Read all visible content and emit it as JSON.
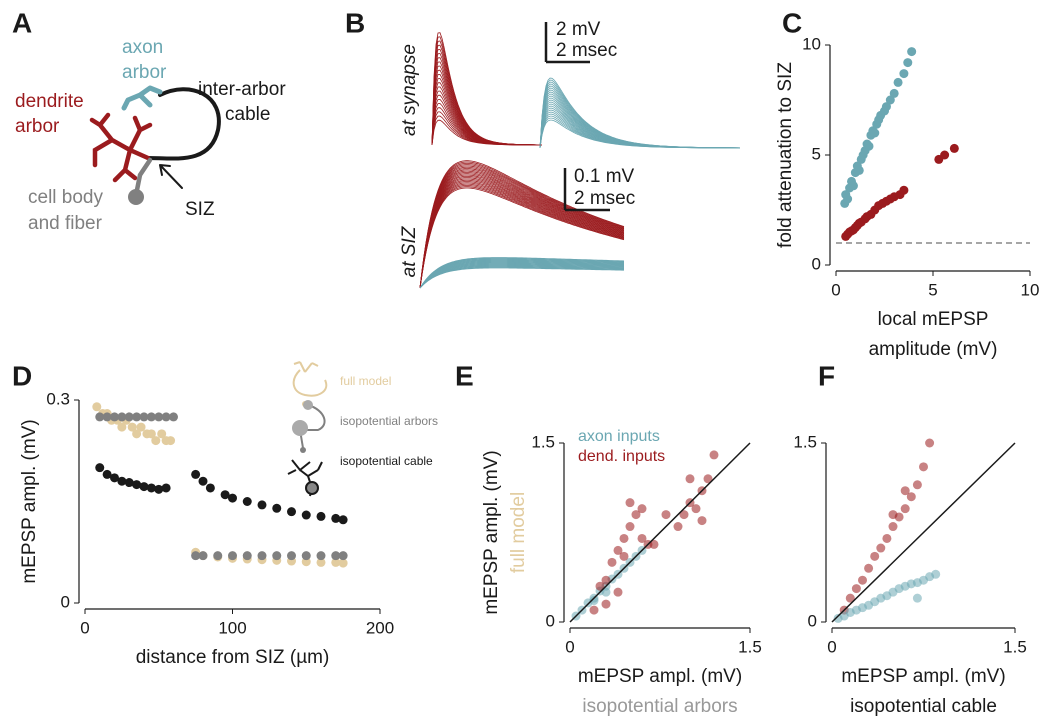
{
  "panel_labels": [
    "A",
    "B",
    "C",
    "D",
    "E",
    "F"
  ],
  "diagram": {
    "axon": [
      "axon",
      "arbor"
    ],
    "dendrite": [
      "dendrite",
      "arbor"
    ],
    "cable": [
      "inter-arbor",
      "cable"
    ],
    "soma": [
      "cell body",
      "and fiber"
    ],
    "siz": "SIZ"
  },
  "traces": {
    "row_labels": [
      "at synapse",
      "at SIZ"
    ],
    "scale_bars": [
      {
        "amplitude": "2 mV",
        "time": "2 msec"
      },
      {
        "amplitude": "0.1 mV",
        "time": "2 msec"
      }
    ]
  },
  "chart_data": [
    {
      "type": "scatter",
      "ylabel": [
        "fold attenuation to SIZ"
      ],
      "xlabel": [
        "local mEPSP",
        "amplitude (mV)"
      ],
      "xlim": [
        0,
        10
      ],
      "ylim": [
        0,
        10
      ],
      "xticks": [
        0,
        5,
        10
      ],
      "yticks": [
        0,
        5,
        10
      ],
      "hline": 1,
      "series": [
        {
          "color": "#6ba7b2",
          "x": [
            0.45,
            0.5,
            0.6,
            0.7,
            0.8,
            0.9,
            1.0,
            1.1,
            1.2,
            1.3,
            1.4,
            1.5,
            1.6,
            1.7,
            1.8,
            1.9,
            2.0,
            2.1,
            2.2,
            2.3,
            2.5,
            2.6,
            2.8,
            3.0,
            3.2,
            3.5,
            3.7,
            3.9
          ],
          "values": [
            2.8,
            3.2,
            3.0,
            3.5,
            3.8,
            3.6,
            4.2,
            4.5,
            4.3,
            4.8,
            5.0,
            5.2,
            5.5,
            5.4,
            5.9,
            6.1,
            6.0,
            6.4,
            6.6,
            6.8,
            7.0,
            7.2,
            7.5,
            7.8,
            8.3,
            8.7,
            9.2,
            9.7
          ]
        },
        {
          "color": "#9b1b1e",
          "x": [
            0.5,
            0.6,
            0.7,
            0.8,
            0.9,
            1.0,
            1.1,
            1.2,
            1.3,
            1.5,
            1.6,
            1.8,
            2.0,
            2.2,
            2.4,
            2.6,
            2.8,
            3.0,
            3.3,
            3.5,
            5.3,
            5.6,
            6.1
          ],
          "values": [
            1.3,
            1.4,
            1.5,
            1.55,
            1.6,
            1.7,
            1.8,
            1.9,
            1.95,
            2.1,
            2.2,
            2.3,
            2.5,
            2.7,
            2.8,
            2.9,
            3.0,
            3.1,
            3.2,
            3.4,
            4.8,
            5.0,
            5.3
          ]
        }
      ]
    },
    {
      "type": "scatter",
      "ylabel": [
        "mEPSP ampl. (mV)"
      ],
      "xlabel": [
        "distance from SIZ (µm)"
      ],
      "xlim": [
        0,
        200
      ],
      "ylim": [
        0,
        0.3
      ],
      "xticks": [
        0,
        100,
        200
      ],
      "yticks": [
        0,
        0.3
      ],
      "series": [
        {
          "name": "full model",
          "color": "#e2cc9f",
          "x": [
            8,
            12,
            15,
            18,
            22,
            25,
            28,
            32,
            35,
            38,
            42,
            45,
            48,
            52,
            55,
            58,
            75,
            80,
            90,
            100,
            110,
            120,
            130,
            140,
            150,
            160,
            170,
            175
          ],
          "values": [
            0.29,
            0.28,
            0.28,
            0.27,
            0.27,
            0.26,
            0.27,
            0.26,
            0.25,
            0.26,
            0.25,
            0.25,
            0.24,
            0.25,
            0.24,
            0.24,
            0.075,
            0.07,
            0.068,
            0.066,
            0.065,
            0.064,
            0.063,
            0.062,
            0.061,
            0.06,
            0.06,
            0.059
          ]
        },
        {
          "name": "isopotential arbors",
          "color": "#808080",
          "x": [
            10,
            15,
            20,
            25,
            30,
            35,
            40,
            45,
            50,
            55,
            60,
            75,
            80,
            90,
            100,
            110,
            120,
            130,
            140,
            150,
            160,
            170,
            175
          ],
          "values": [
            0.275,
            0.275,
            0.275,
            0.275,
            0.275,
            0.275,
            0.275,
            0.275,
            0.275,
            0.275,
            0.275,
            0.07,
            0.07,
            0.07,
            0.07,
            0.07,
            0.07,
            0.07,
            0.07,
            0.07,
            0.07,
            0.07,
            0.07
          ]
        },
        {
          "name": "isopotential cable",
          "color": "#1a1a1a",
          "x": [
            10,
            15,
            20,
            25,
            30,
            35,
            40,
            45,
            50,
            55,
            75,
            80,
            85,
            95,
            100,
            110,
            120,
            130,
            140,
            150,
            160,
            170,
            175
          ],
          "values": [
            0.2,
            0.19,
            0.185,
            0.18,
            0.178,
            0.175,
            0.172,
            0.17,
            0.168,
            0.17,
            0.19,
            0.18,
            0.17,
            0.16,
            0.155,
            0.15,
            0.145,
            0.14,
            0.135,
            0.13,
            0.128,
            0.125,
            0.123
          ]
        }
      ]
    },
    {
      "type": "scatter",
      "ylabel": [
        "mEPSP ampl. (mV)",
        "full model"
      ],
      "ylabel_colors": [
        "#1a1a1a",
        "#e2cc9f"
      ],
      "xlabel": [
        "mEPSP ampl. (mV)",
        "isopotential arbors"
      ],
      "xlabel_colors": [
        "#1a1a1a",
        "#999999"
      ],
      "xlim": [
        0,
        1.5
      ],
      "ylim": [
        0,
        1.5
      ],
      "xticks": [
        0,
        1.5
      ],
      "yticks": [
        0,
        1.5
      ],
      "diagonal": true,
      "series": [
        {
          "name": "axon inputs",
          "color": "#6ba7b2",
          "x": [
            0.05,
            0.1,
            0.15,
            0.2,
            0.25,
            0.3,
            0.35,
            0.4,
            0.45,
            0.5,
            0.55,
            0.6,
            0.3,
            0.2
          ],
          "values": [
            0.05,
            0.1,
            0.16,
            0.2,
            0.26,
            0.3,
            0.36,
            0.4,
            0.45,
            0.5,
            0.55,
            0.6,
            0.25,
            0.18
          ]
        },
        {
          "name": "dend. inputs",
          "color": "#9b1b1e",
          "x": [
            0.2,
            0.25,
            0.3,
            0.35,
            0.4,
            0.45,
            0.5,
            0.55,
            0.6,
            0.65,
            0.5,
            0.45,
            0.6,
            0.3,
            0.4,
            0.9,
            0.95,
            1.0,
            1.05,
            1.1,
            1.15,
            1.2,
            1.0,
            1.1,
            0.7,
            0.8
          ],
          "values": [
            0.1,
            0.3,
            0.35,
            0.5,
            0.6,
            0.7,
            0.8,
            0.9,
            0.7,
            0.65,
            1.0,
            0.55,
            0.95,
            0.15,
            0.25,
            0.8,
            0.9,
            1.0,
            0.95,
            1.1,
            1.2,
            1.4,
            1.2,
            0.85,
            0.65,
            0.9
          ]
        }
      ]
    },
    {
      "type": "scatter",
      "xlabel": [
        "mEPSP ampl. (mV)",
        "isopotential cable"
      ],
      "xlim": [
        0,
        1.5
      ],
      "ylim": [
        0,
        1.5
      ],
      "xticks": [
        0,
        1.5
      ],
      "yticks": [
        0,
        1.5
      ],
      "diagonal": true,
      "series": [
        {
          "color": "#9b1b1e",
          "x": [
            0.1,
            0.15,
            0.2,
            0.25,
            0.3,
            0.35,
            0.4,
            0.45,
            0.5,
            0.55,
            0.6,
            0.65,
            0.7,
            0.75,
            0.8,
            0.5,
            0.6
          ],
          "values": [
            0.1,
            0.2,
            0.28,
            0.35,
            0.45,
            0.55,
            0.62,
            0.7,
            0.8,
            0.88,
            0.95,
            1.05,
            1.15,
            1.3,
            1.5,
            0.9,
            1.1
          ]
        },
        {
          "color": "#6ba7b2",
          "x": [
            0.05,
            0.1,
            0.15,
            0.2,
            0.25,
            0.3,
            0.35,
            0.4,
            0.45,
            0.5,
            0.55,
            0.6,
            0.65,
            0.7,
            0.75,
            0.8,
            0.85,
            0.7
          ],
          "values": [
            0.03,
            0.05,
            0.08,
            0.1,
            0.12,
            0.14,
            0.17,
            0.2,
            0.22,
            0.25,
            0.28,
            0.3,
            0.32,
            0.33,
            0.35,
            0.38,
            0.4,
            0.2
          ]
        }
      ]
    }
  ]
}
